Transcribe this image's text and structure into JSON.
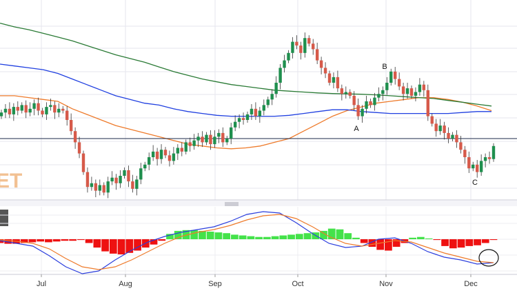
{
  "chart_data": [
    {
      "type": "candlestick",
      "panel": "price",
      "x_labels": [
        "Jul",
        "Aug",
        "Sep",
        "Oct",
        "Nov",
        "Dec"
      ],
      "grid": true,
      "watermark": "ET",
      "annotations": [
        "A",
        "B",
        "C"
      ],
      "colors": {
        "up": "#1f8f4e",
        "down": "#d65a4a",
        "ma_fast": "#ee7a2a",
        "ma_mid": "#1f3fe0",
        "ma_slow": "#2a7a35",
        "hline": "#1b2a4a",
        "watermark": "#f2c193"
      },
      "series": [
        {
          "name": "",
          "kind": "candles",
          "close": [
            4.4,
            4.6,
            4.3,
            4.7,
            4.5,
            4.8,
            4.4,
            4.6,
            4.9,
            4.5,
            4.3,
            4.7,
            4.8,
            4.4,
            4.6,
            4.5,
            4.0,
            3.4,
            2.8,
            2.2,
            1.2,
            0.4,
            0.6,
            0.2,
            0.5,
            0.1,
            0.7,
            0.9,
            0.6,
            1.0,
            1.3,
            0.7,
            0.3,
            0.8,
            1.4,
            1.6,
            2.0,
            2.3,
            1.9,
            2.4,
            2.1,
            1.8,
            2.2,
            2.5,
            2.3,
            2.8,
            2.6,
            2.9,
            3.1,
            2.8,
            3.2,
            2.7,
            3.1,
            3.3,
            2.8,
            3.0,
            3.6,
            3.9,
            4.1,
            4.0,
            4.3,
            4.6,
            4.2,
            4.5,
            4.8,
            5.1,
            5.4,
            6.0,
            6.8,
            7.2,
            7.6,
            8.2,
            8.0,
            7.6,
            8.4,
            8.1,
            7.8,
            7.2,
            6.8,
            6.5,
            6.0,
            6.3,
            5.7,
            5.4,
            5.5,
            5.3,
            4.8,
            4.2,
            4.6,
            5.0,
            4.8,
            5.2,
            5.4,
            5.6,
            6.0,
            6.6,
            6.2,
            5.8,
            5.4,
            5.7,
            5.3,
            5.5,
            5.9,
            5.6,
            4.2,
            3.8,
            3.4,
            3.7,
            3.3,
            3.0,
            3.2,
            2.8,
            2.4,
            2.0,
            1.4,
            1.6,
            1.2,
            1.8,
            2.0,
            1.9,
            2.6
          ]
        },
        {
          "name": "",
          "kind": "line",
          "values": [
            5.3,
            5.3,
            5.2,
            5.1,
            5.0,
            4.6,
            4.3,
            4.0,
            3.7,
            3.5,
            3.3,
            3.1,
            2.9,
            2.7,
            2.6,
            2.5,
            2.45,
            2.5,
            2.6,
            2.8,
            3.0,
            3.4,
            3.8,
            4.2,
            4.5,
            4.7,
            4.9,
            5.0,
            5.1,
            5.2,
            5.2,
            5.1,
            4.95,
            4.75,
            4.5
          ]
        },
        {
          "name": "",
          "kind": "line",
          "values": [
            7.0,
            6.9,
            6.8,
            6.7,
            6.5,
            6.2,
            5.9,
            5.6,
            5.3,
            5.1,
            4.9,
            4.8,
            4.6,
            4.45,
            4.35,
            4.25,
            4.2,
            4.2,
            4.2,
            4.2,
            4.25,
            4.35,
            4.45,
            4.55,
            4.55,
            4.45,
            4.4,
            4.35,
            4.35,
            4.35,
            4.35,
            4.35,
            4.4,
            4.45,
            4.45
          ]
        },
        {
          "name": "",
          "kind": "line",
          "values": [
            9.2,
            9.0,
            8.85,
            8.65,
            8.45,
            8.25,
            8.0,
            7.75,
            7.5,
            7.3,
            7.1,
            6.85,
            6.6,
            6.4,
            6.2,
            6.05,
            5.9,
            5.8,
            5.7,
            5.6,
            5.55,
            5.5,
            5.45,
            5.42,
            5.4,
            5.38,
            5.35,
            5.3,
            5.25,
            5.2,
            5.15,
            5.05,
            4.95,
            4.85,
            4.75
          ]
        }
      ],
      "hline": 3.0,
      "ylim": [
        0,
        10
      ]
    },
    {
      "type": "histogram+line",
      "panel": "oscillator",
      "histogram": [
        -0.25,
        -0.3,
        -0.3,
        -0.25,
        -0.2,
        -0.15,
        -0.2,
        -0.15,
        -0.1,
        -0.1,
        -0.05,
        -0.25,
        -0.55,
        -0.8,
        -0.95,
        -1.0,
        -0.9,
        -0.75,
        -0.55,
        -0.35,
        -0.1,
        0.35,
        0.55,
        0.6,
        0.6,
        0.55,
        0.5,
        0.45,
        0.4,
        0.3,
        0.25,
        0.2,
        0.15,
        0.15,
        0.2,
        0.25,
        0.3,
        0.35,
        0.4,
        0.45,
        0.55,
        0.7,
        0.65,
        0.4,
        0.1,
        -0.25,
        -0.5,
        -0.7,
        -0.75,
        -0.5,
        -0.25,
        0.1,
        0.15,
        0.05,
        -0.05,
        -0.45,
        -0.6,
        -0.55,
        -0.45,
        -0.4,
        -0.25,
        -0.05
      ],
      "series": [
        {
          "name": "",
          "values": [
            -0.1,
            -0.3,
            -0.5,
            -1.2,
            -2.0,
            -2.5,
            -2.3,
            -1.5,
            -0.8,
            -0.2,
            0.2,
            0.5,
            0.7,
            0.9,
            1.3,
            1.8,
            2.0,
            1.9,
            1.2,
            0.4,
            -0.3,
            -0.6,
            -0.5,
            0.0,
            0.1,
            -0.3,
            -0.9,
            -1.3,
            -1.5,
            -1.8,
            -1.7
          ]
        },
        {
          "name": "",
          "values": [
            -0.05,
            -0.15,
            -0.3,
            -0.7,
            -1.4,
            -2.0,
            -2.2,
            -2.0,
            -1.5,
            -0.9,
            -0.3,
            0.2,
            0.5,
            0.7,
            1.0,
            1.4,
            1.7,
            1.8,
            1.5,
            0.9,
            0.2,
            -0.3,
            -0.5,
            -0.3,
            -0.1,
            -0.2,
            -0.6,
            -1.0,
            -1.3,
            -1.6,
            -1.7
          ]
        }
      ],
      "colors": {
        "hist_pos": "#44e24a",
        "hist_neg": "#ee1111",
        "line_fast": "#2a3ddd",
        "line_slow": "#ee7a2a",
        "marker": "#111111"
      }
    }
  ]
}
